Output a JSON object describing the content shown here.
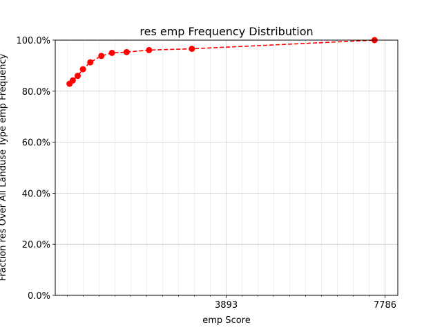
{
  "chart_data": {
    "type": "line",
    "title": "res emp Frequency Distribution",
    "xlabel": "emp Score",
    "ylabel": "Fraction res Over All Landuse Type emp Frequency",
    "xlim": [
      -300,
      8100
    ],
    "ylim": [
      0,
      100
    ],
    "x_ticks": [
      {
        "value": 3893,
        "label": "3893"
      },
      {
        "value": 7786,
        "label": "7786"
      }
    ],
    "y_ticks": [
      {
        "value": 0,
        "label": "0.0%"
      },
      {
        "value": 20,
        "label": "20.0%"
      },
      {
        "value": 40,
        "label": "40.0%"
      },
      {
        "value": 60,
        "label": "60.0%"
      },
      {
        "value": 80,
        "label": "80.0%"
      },
      {
        "value": 100,
        "label": "100.0%"
      }
    ],
    "grid": true,
    "series": [
      {
        "color": "#ff0000",
        "line_style": "dashed",
        "marker": "circle",
        "points": [
          {
            "x": 50,
            "y": 82.9
          },
          {
            "x": 130,
            "y": 84.2
          },
          {
            "x": 250,
            "y": 86.0
          },
          {
            "x": 380,
            "y": 88.6
          },
          {
            "x": 560,
            "y": 91.3
          },
          {
            "x": 830,
            "y": 93.8
          },
          {
            "x": 1090,
            "y": 95.0
          },
          {
            "x": 1450,
            "y": 95.3
          },
          {
            "x": 2000,
            "y": 96.1
          },
          {
            "x": 3050,
            "y": 96.6
          },
          {
            "x": 7530,
            "y": 100.0
          }
        ]
      }
    ]
  }
}
